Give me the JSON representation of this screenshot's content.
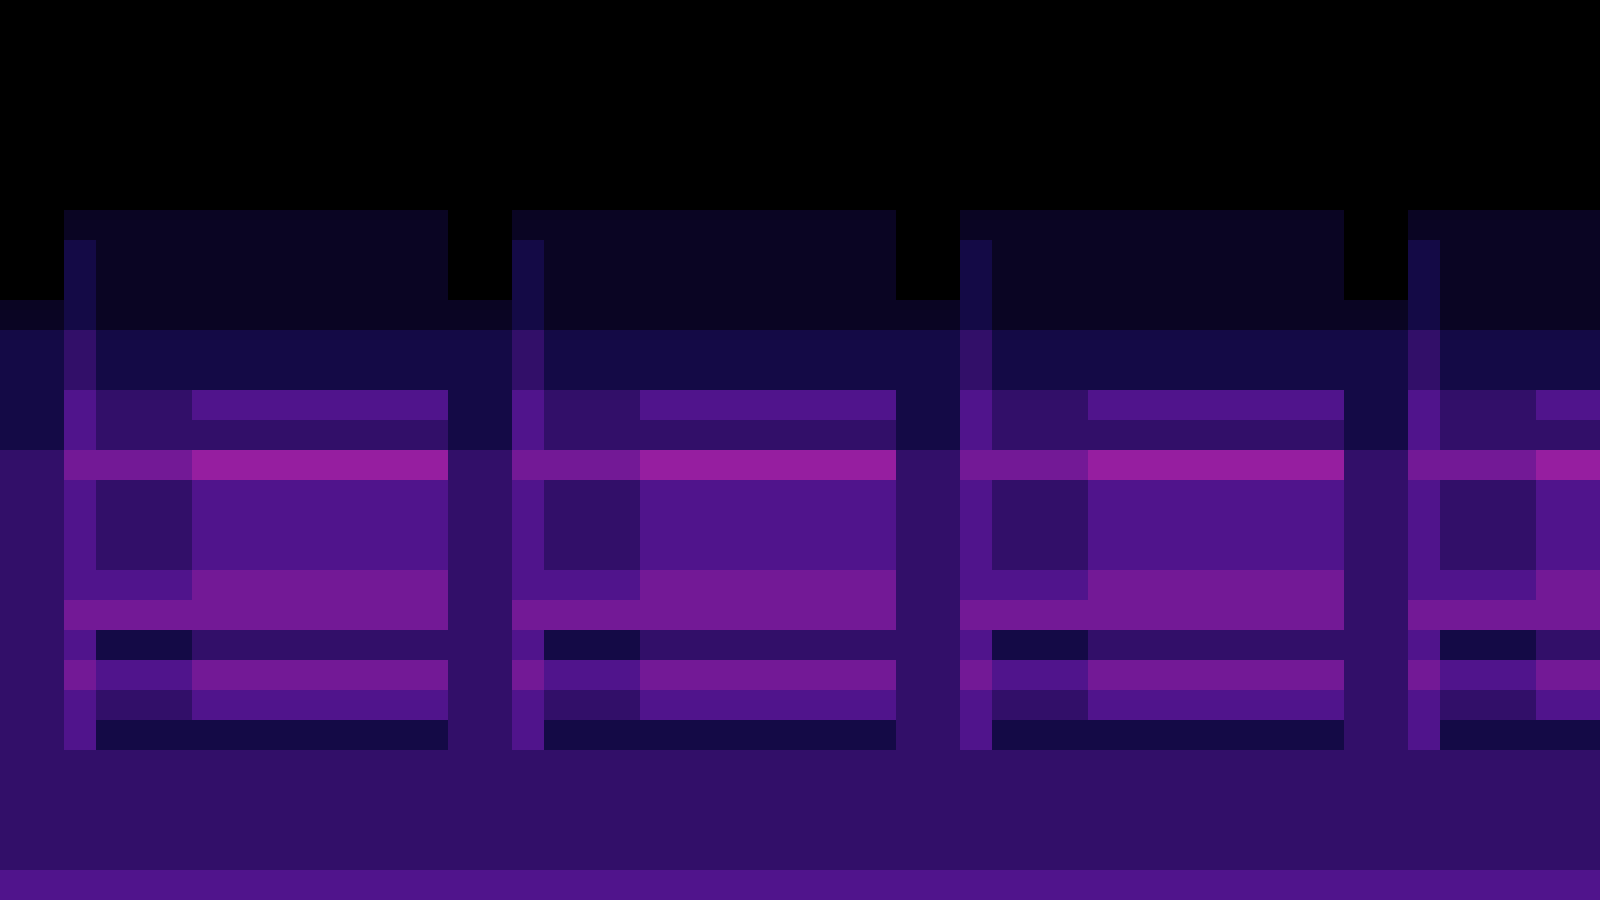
{
  "chart_data": {
    "type": "heatmap",
    "zlim": [
      0,
      8
    ],
    "tick_labels": false,
    "cells": [
      [
        0,
        0,
        0,
        0,
        0,
        0,
        0,
        0,
        0,
        0,
        0,
        0,
        0,
        0,
        0,
        0,
        0,
        0,
        0,
        0,
        0,
        0,
        0,
        0,
        0,
        0,
        0,
        0,
        0,
        0,
        0,
        0,
        0,
        0,
        0,
        0,
        0,
        0,
        0,
        0,
        0,
        0,
        0,
        0,
        0,
        0,
        0,
        0,
        0,
        0
      ],
      [
        0,
        0,
        0,
        0,
        0,
        0,
        0,
        0,
        0,
        0,
        0,
        0,
        0,
        0,
        0,
        0,
        0,
        0,
        0,
        0,
        0,
        0,
        0,
        0,
        0,
        0,
        0,
        0,
        0,
        0,
        0,
        0,
        0,
        0,
        0,
        0,
        0,
        0,
        0,
        0,
        0,
        0,
        0,
        0,
        0,
        0,
        0,
        0,
        0,
        0
      ],
      [
        0,
        0,
        0,
        0,
        0,
        0,
        0,
        0,
        0,
        0,
        0,
        0,
        0,
        0,
        0,
        0,
        0,
        0,
        0,
        0,
        0,
        0,
        0,
        0,
        0,
        0,
        0,
        0,
        0,
        0,
        0,
        0,
        0,
        0,
        0,
        0,
        0,
        0,
        0,
        0,
        0,
        0,
        0,
        0,
        0,
        0,
        0,
        0,
        0,
        0
      ],
      [
        0,
        0,
        0,
        0,
        0,
        0,
        0,
        0,
        0,
        0,
        0,
        0,
        0,
        0,
        0,
        0,
        0,
        0,
        0,
        0,
        0,
        0,
        0,
        0,
        0,
        0,
        0,
        0,
        0,
        0,
        0,
        0,
        0,
        0,
        0,
        0,
        0,
        0,
        0,
        0,
        0,
        0,
        0,
        0,
        0,
        0,
        0,
        0,
        0,
        0
      ],
      [
        0,
        0,
        0,
        0,
        0,
        0,
        0,
        0,
        0,
        0,
        0,
        0,
        0,
        0,
        0,
        0,
        0,
        0,
        0,
        0,
        0,
        0,
        0,
        0,
        0,
        0,
        0,
        0,
        0,
        0,
        0,
        0,
        0,
        0,
        0,
        0,
        0,
        0,
        0,
        0,
        0,
        0,
        0,
        0,
        0,
        0,
        0,
        0,
        0,
        0
      ],
      [
        0,
        0,
        0,
        0,
        0,
        0,
        0,
        0,
        0,
        0,
        0,
        0,
        0,
        0,
        0,
        0,
        0,
        0,
        0,
        0,
        0,
        0,
        0,
        0,
        0,
        0,
        0,
        0,
        0,
        0,
        0,
        0,
        0,
        0,
        0,
        0,
        0,
        0,
        0,
        0,
        0,
        0,
        0,
        0,
        0,
        0,
        0,
        0,
        0,
        0
      ],
      [
        0,
        0,
        0,
        0,
        0,
        0,
        0,
        0,
        0,
        0,
        0,
        0,
        0,
        0,
        0,
        0,
        0,
        0,
        0,
        0,
        0,
        0,
        0,
        0,
        0,
        0,
        0,
        0,
        0,
        0,
        0,
        0,
        0,
        0,
        0,
        0,
        0,
        0,
        0,
        0,
        0,
        0,
        0,
        0,
        0,
        0,
        0,
        0,
        0,
        0
      ],
      [
        0,
        0,
        1,
        1,
        1,
        1,
        1,
        1,
        1,
        1,
        1,
        1,
        1,
        1,
        0,
        0,
        1,
        1,
        1,
        1,
        1,
        1,
        1,
        1,
        1,
        1,
        1,
        1,
        0,
        0,
        1,
        1,
        1,
        1,
        1,
        1,
        1,
        1,
        1,
        1,
        1,
        1,
        0,
        0,
        1,
        1,
        1,
        1,
        1,
        1
      ],
      [
        0,
        0,
        2,
        1,
        1,
        1,
        1,
        1,
        1,
        1,
        1,
        1,
        1,
        1,
        0,
        0,
        2,
        1,
        1,
        1,
        1,
        1,
        1,
        1,
        1,
        1,
        1,
        1,
        0,
        0,
        2,
        1,
        1,
        1,
        1,
        1,
        1,
        1,
        1,
        1,
        1,
        1,
        0,
        0,
        2,
        1,
        1,
        1,
        1,
        1
      ],
      [
        0,
        0,
        2,
        1,
        1,
        1,
        1,
        1,
        1,
        1,
        1,
        1,
        1,
        1,
        0,
        0,
        2,
        1,
        1,
        1,
        1,
        1,
        1,
        1,
        1,
        1,
        1,
        1,
        0,
        0,
        2,
        1,
        1,
        1,
        1,
        1,
        1,
        1,
        1,
        1,
        1,
        1,
        0,
        0,
        2,
        1,
        1,
        1,
        1,
        1
      ],
      [
        1,
        1,
        2,
        1,
        1,
        1,
        1,
        1,
        1,
        1,
        1,
        1,
        1,
        1,
        1,
        1,
        2,
        1,
        1,
        1,
        1,
        1,
        1,
        1,
        1,
        1,
        1,
        1,
        1,
        1,
        2,
        1,
        1,
        1,
        1,
        1,
        1,
        1,
        1,
        1,
        1,
        1,
        1,
        1,
        2,
        1,
        1,
        1,
        1,
        1
      ],
      [
        2,
        2,
        3,
        2,
        2,
        2,
        2,
        2,
        2,
        2,
        2,
        2,
        2,
        2,
        2,
        2,
        3,
        2,
        2,
        2,
        2,
        2,
        2,
        2,
        2,
        2,
        2,
        2,
        2,
        2,
        3,
        2,
        2,
        2,
        2,
        2,
        2,
        2,
        2,
        2,
        2,
        2,
        2,
        2,
        3,
        2,
        2,
        2,
        2,
        2
      ],
      [
        2,
        2,
        3,
        2,
        2,
        2,
        2,
        2,
        2,
        2,
        2,
        2,
        2,
        2,
        2,
        2,
        3,
        2,
        2,
        2,
        2,
        2,
        2,
        2,
        2,
        2,
        2,
        2,
        2,
        2,
        3,
        2,
        2,
        2,
        2,
        2,
        2,
        2,
        2,
        2,
        2,
        2,
        2,
        2,
        3,
        2,
        2,
        2,
        2,
        2
      ],
      [
        2,
        2,
        4,
        3,
        3,
        3,
        4,
        4,
        4,
        4,
        4,
        4,
        4,
        4,
        2,
        2,
        4,
        3,
        3,
        3,
        4,
        4,
        4,
        4,
        4,
        4,
        4,
        4,
        2,
        2,
        4,
        3,
        3,
        3,
        4,
        4,
        4,
        4,
        4,
        4,
        4,
        4,
        2,
        2,
        4,
        3,
        3,
        3,
        4,
        4
      ],
      [
        2,
        2,
        4,
        3,
        3,
        3,
        3,
        3,
        3,
        3,
        3,
        3,
        3,
        3,
        2,
        2,
        4,
        3,
        3,
        3,
        3,
        3,
        3,
        3,
        3,
        3,
        3,
        3,
        2,
        2,
        4,
        3,
        3,
        3,
        3,
        3,
        3,
        3,
        3,
        3,
        3,
        3,
        2,
        2,
        4,
        3,
        3,
        3,
        3,
        3
      ],
      [
        3,
        3,
        5,
        5,
        5,
        5,
        6,
        6,
        6,
        6,
        6,
        6,
        6,
        6,
        3,
        3,
        5,
        5,
        5,
        5,
        6,
        6,
        6,
        6,
        6,
        6,
        6,
        6,
        3,
        3,
        5,
        5,
        5,
        5,
        6,
        6,
        6,
        6,
        6,
        6,
        6,
        6,
        3,
        3,
        5,
        5,
        5,
        5,
        6,
        6
      ],
      [
        3,
        3,
        4,
        3,
        3,
        3,
        4,
        4,
        4,
        4,
        4,
        4,
        4,
        4,
        3,
        3,
        4,
        3,
        3,
        3,
        4,
        4,
        4,
        4,
        4,
        4,
        4,
        4,
        3,
        3,
        4,
        3,
        3,
        3,
        4,
        4,
        4,
        4,
        4,
        4,
        4,
        4,
        3,
        3,
        4,
        3,
        3,
        3,
        4,
        4
      ],
      [
        3,
        3,
        4,
        3,
        3,
        3,
        4,
        4,
        4,
        4,
        4,
        4,
        4,
        4,
        3,
        3,
        4,
        3,
        3,
        3,
        4,
        4,
        4,
        4,
        4,
        4,
        4,
        4,
        3,
        3,
        4,
        3,
        3,
        3,
        4,
        4,
        4,
        4,
        4,
        4,
        4,
        4,
        3,
        3,
        4,
        3,
        3,
        3,
        4,
        4
      ],
      [
        3,
        3,
        4,
        3,
        3,
        3,
        4,
        4,
        4,
        4,
        4,
        4,
        4,
        4,
        3,
        3,
        4,
        3,
        3,
        3,
        4,
        4,
        4,
        4,
        4,
        4,
        4,
        4,
        3,
        3,
        4,
        3,
        3,
        3,
        4,
        4,
        4,
        4,
        4,
        4,
        4,
        4,
        3,
        3,
        4,
        3,
        3,
        3,
        4,
        4
      ],
      [
        3,
        3,
        4,
        4,
        4,
        4,
        5,
        5,
        5,
        5,
        5,
        5,
        5,
        5,
        3,
        3,
        4,
        4,
        4,
        4,
        5,
        5,
        5,
        5,
        5,
        5,
        5,
        5,
        3,
        3,
        4,
        4,
        4,
        4,
        5,
        5,
        5,
        5,
        5,
        5,
        5,
        5,
        3,
        3,
        4,
        4,
        4,
        4,
        5,
        5
      ],
      [
        3,
        3,
        5,
        5,
        5,
        5,
        5,
        5,
        5,
        5,
        5,
        5,
        5,
        5,
        3,
        3,
        5,
        5,
        5,
        5,
        5,
        5,
        5,
        5,
        5,
        5,
        5,
        5,
        3,
        3,
        5,
        5,
        5,
        5,
        5,
        5,
        5,
        5,
        5,
        5,
        5,
        5,
        3,
        3,
        5,
        5,
        5,
        5,
        5,
        5
      ],
      [
        3,
        3,
        4,
        2,
        2,
        2,
        3,
        3,
        3,
        3,
        3,
        3,
        3,
        3,
        3,
        3,
        4,
        2,
        2,
        2,
        3,
        3,
        3,
        3,
        3,
        3,
        3,
        3,
        3,
        3,
        4,
        2,
        2,
        2,
        3,
        3,
        3,
        3,
        3,
        3,
        3,
        3,
        3,
        3,
        4,
        2,
        2,
        2,
        3,
        3
      ],
      [
        3,
        3,
        5,
        4,
        4,
        4,
        5,
        5,
        5,
        5,
        5,
        5,
        5,
        5,
        3,
        3,
        5,
        4,
        4,
        4,
        5,
        5,
        5,
        5,
        5,
        5,
        5,
        5,
        3,
        3,
        5,
        4,
        4,
        4,
        5,
        5,
        5,
        5,
        5,
        5,
        5,
        5,
        3,
        3,
        5,
        4,
        4,
        4,
        5,
        5
      ],
      [
        3,
        3,
        4,
        3,
        3,
        3,
        4,
        4,
        4,
        4,
        4,
        4,
        4,
        4,
        3,
        3,
        4,
        3,
        3,
        3,
        4,
        4,
        4,
        4,
        4,
        4,
        4,
        4,
        3,
        3,
        4,
        3,
        3,
        3,
        4,
        4,
        4,
        4,
        4,
        4,
        4,
        4,
        3,
        3,
        4,
        3,
        3,
        3,
        4,
        4
      ],
      [
        3,
        3,
        4,
        2,
        2,
        2,
        2,
        2,
        2,
        2,
        2,
        2,
        2,
        2,
        3,
        3,
        4,
        2,
        2,
        2,
        2,
        2,
        2,
        2,
        2,
        2,
        2,
        2,
        3,
        3,
        4,
        2,
        2,
        2,
        2,
        2,
        2,
        2,
        2,
        2,
        2,
        2,
        3,
        3,
        4,
        2,
        2,
        2,
        2,
        2
      ],
      [
        3,
        3,
        3,
        3,
        3,
        3,
        3,
        3,
        3,
        3,
        3,
        3,
        3,
        3,
        3,
        3,
        3,
        3,
        3,
        3,
        3,
        3,
        3,
        3,
        3,
        3,
        3,
        3,
        3,
        3,
        3,
        3,
        3,
        3,
        3,
        3,
        3,
        3,
        3,
        3,
        3,
        3,
        3,
        3,
        3,
        3,
        3,
        3,
        3,
        3
      ],
      [
        3,
        3,
        3,
        3,
        3,
        3,
        3,
        3,
        3,
        3,
        3,
        3,
        3,
        3,
        3,
        3,
        3,
        3,
        3,
        3,
        3,
        3,
        3,
        3,
        3,
        3,
        3,
        3,
        3,
        3,
        3,
        3,
        3,
        3,
        3,
        3,
        3,
        3,
        3,
        3,
        3,
        3,
        3,
        3,
        3,
        3,
        3,
        3,
        3,
        3
      ],
      [
        3,
        3,
        3,
        3,
        3,
        3,
        3,
        3,
        3,
        3,
        3,
        3,
        3,
        3,
        3,
        3,
        3,
        3,
        3,
        3,
        3,
        3,
        3,
        3,
        3,
        3,
        3,
        3,
        3,
        3,
        3,
        3,
        3,
        3,
        3,
        3,
        3,
        3,
        3,
        3,
        3,
        3,
        3,
        3,
        3,
        3,
        3,
        3,
        3,
        3
      ],
      [
        3,
        3,
        3,
        3,
        3,
        3,
        3,
        3,
        3,
        3,
        3,
        3,
        3,
        3,
        3,
        3,
        3,
        3,
        3,
        3,
        3,
        3,
        3,
        3,
        3,
        3,
        3,
        3,
        3,
        3,
        3,
        3,
        3,
        3,
        3,
        3,
        3,
        3,
        3,
        3,
        3,
        3,
        3,
        3,
        3,
        3,
        3,
        3,
        3,
        3
      ],
      [
        4,
        4,
        4,
        4,
        4,
        4,
        4,
        4,
        4,
        4,
        4,
        4,
        4,
        4,
        4,
        4,
        4,
        4,
        4,
        4,
        4,
        4,
        4,
        4,
        4,
        4,
        4,
        4,
        4,
        4,
        4,
        4,
        4,
        4,
        4,
        4,
        4,
        4,
        4,
        4,
        4,
        4,
        4,
        4,
        4,
        4,
        4,
        4,
        4,
        4
      ]
    ]
  }
}
